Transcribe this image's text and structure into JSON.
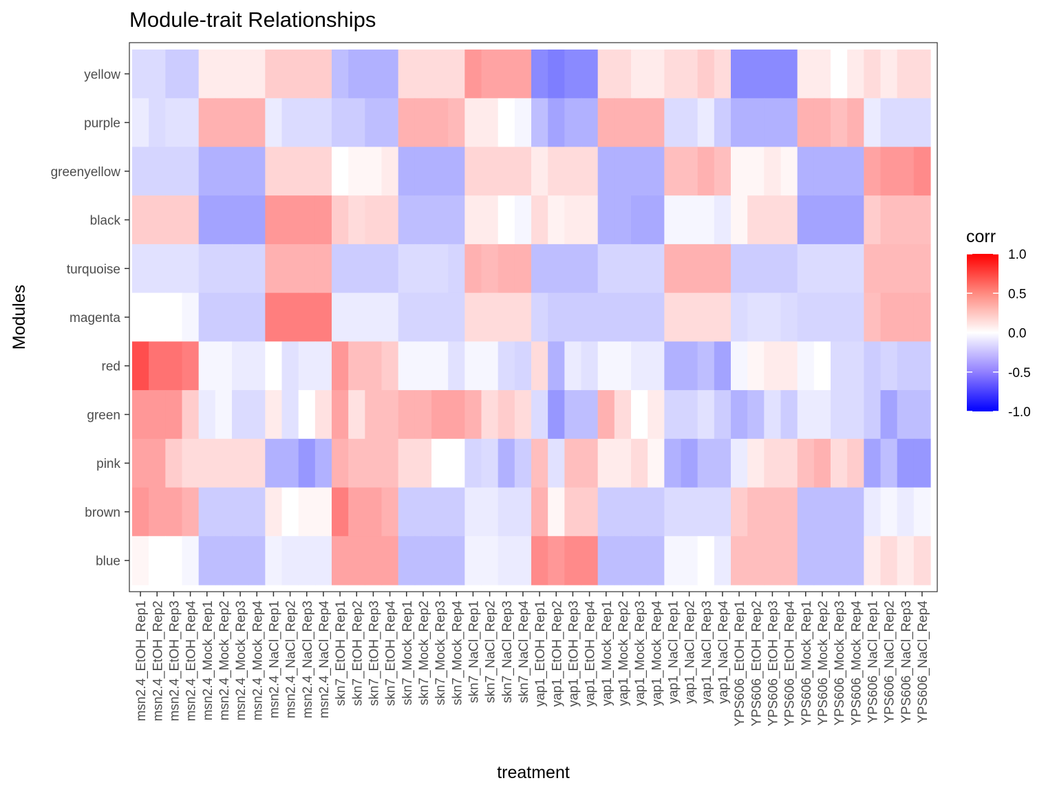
{
  "chart_data": {
    "type": "heatmap",
    "title": "Module-trait Relationships",
    "xlabel": "treatment",
    "ylabel": "Modules",
    "rows": [
      "yellow",
      "purple",
      "greenyellow",
      "black",
      "turquoise",
      "magenta",
      "red",
      "green",
      "pink",
      "brown",
      "blue"
    ],
    "columns": [
      "msn2.4_EtOH_Rep1",
      "msn2.4_EtOH_Rep2",
      "msn2.4_EtOH_Rep3",
      "msn2.4_EtOH_Rep4",
      "msn2.4_Mock_Rep1",
      "msn2.4_Mock_Rep2",
      "msn2.4_Mock_Rep3",
      "msn2.4_Mock_Rep4",
      "msn2.4_NaCl_Rep1",
      "msn2.4_NaCl_Rep2",
      "msn2.4_NaCl_Rep3",
      "msn2.4_NaCl_Rep4",
      "skn7_EtOH_Rep1",
      "skn7_EtOH_Rep2",
      "skn7_EtOH_Rep3",
      "skn7_EtOH_Rep4",
      "skn7_Mock_Rep1",
      "skn7_Mock_Rep2",
      "skn7_Mock_Rep3",
      "skn7_Mock_Rep4",
      "skn7_NaCl_Rep1",
      "skn7_NaCl_Rep2",
      "skn7_NaCl_Rep3",
      "skn7_NaCl_Rep4",
      "yap1_EtOH_Rep1",
      "yap1_EtOH_Rep2",
      "yap1_EtOH_Rep3",
      "yap1_EtOH_Rep4",
      "yap1_Mock_Rep1",
      "yap1_Mock_Rep2",
      "yap1_Mock_Rep3",
      "yap1_Mock_Rep4",
      "yap1_NaCl_Rep1",
      "yap1_NaCl_Rep2",
      "yap1_NaCl_Rep3",
      "yap1_NaCl_Rep4",
      "YPS606_EtOH_Rep1",
      "YPS606_EtOH_Rep2",
      "YPS606_EtOH_Rep3",
      "YPS606_EtOH_Rep4",
      "YPS606_Mock_Rep1",
      "YPS606_Mock_Rep2",
      "YPS606_Mock_Rep3",
      "YPS606_Mock_Rep4",
      "YPS606_NaCl_Rep1",
      "YPS606_NaCl_Rep2",
      "YPS606_NaCl_Rep3",
      "YPS606_NaCl_Rep4"
    ],
    "values": [
      [
        -0.1,
        -0.1,
        -0.15,
        -0.15,
        0.05,
        0.05,
        0.05,
        0.05,
        0.15,
        0.15,
        0.15,
        0.15,
        -0.2,
        -0.25,
        -0.25,
        -0.25,
        0.1,
        0.1,
        0.1,
        0.1,
        0.35,
        0.3,
        0.3,
        0.3,
        -0.4,
        -0.45,
        -0.4,
        -0.4,
        0.1,
        0.1,
        0.05,
        0.05,
        0.1,
        0.1,
        0.15,
        0.1,
        -0.4,
        -0.4,
        -0.4,
        -0.4,
        0.05,
        0.05,
        0.0,
        0.05,
        0.1,
        0.05,
        0.1,
        0.1
      ],
      [
        -0.05,
        -0.1,
        -0.08,
        -0.08,
        0.25,
        0.25,
        0.25,
        0.25,
        -0.05,
        -0.1,
        -0.1,
        -0.1,
        -0.15,
        -0.15,
        -0.2,
        -0.2,
        0.25,
        0.25,
        0.25,
        0.22,
        0.05,
        0.05,
        0.0,
        -0.02,
        -0.2,
        -0.3,
        -0.25,
        -0.25,
        0.25,
        0.25,
        0.25,
        0.25,
        -0.1,
        -0.1,
        -0.05,
        -0.15,
        -0.25,
        -0.25,
        -0.25,
        -0.25,
        0.25,
        0.25,
        0.2,
        0.25,
        -0.05,
        -0.1,
        -0.1,
        -0.1
      ],
      [
        -0.12,
        -0.12,
        -0.12,
        -0.12,
        -0.25,
        -0.25,
        -0.25,
        -0.25,
        0.12,
        0.12,
        0.12,
        0.12,
        0.0,
        0.02,
        0.02,
        0.05,
        -0.25,
        -0.25,
        -0.25,
        -0.25,
        0.12,
        0.12,
        0.12,
        0.12,
        0.05,
        0.1,
        0.1,
        0.1,
        -0.25,
        -0.25,
        -0.25,
        -0.25,
        0.2,
        0.2,
        0.25,
        0.2,
        0.02,
        0.02,
        0.05,
        0.02,
        -0.25,
        -0.25,
        -0.25,
        -0.25,
        0.3,
        0.35,
        0.35,
        0.4
      ],
      [
        0.15,
        0.15,
        0.15,
        0.15,
        -0.3,
        -0.3,
        -0.3,
        -0.3,
        0.35,
        0.35,
        0.35,
        0.35,
        0.15,
        0.1,
        0.12,
        0.12,
        -0.2,
        -0.2,
        -0.2,
        -0.2,
        0.05,
        0.05,
        0.0,
        -0.02,
        0.1,
        0.03,
        0.05,
        0.05,
        -0.25,
        -0.25,
        -0.28,
        -0.28,
        -0.02,
        -0.02,
        -0.02,
        -0.05,
        0.02,
        0.1,
        0.1,
        0.1,
        -0.3,
        -0.3,
        -0.3,
        -0.3,
        0.15,
        0.2,
        0.2,
        0.2
      ],
      [
        -0.08,
        -0.08,
        -0.08,
        -0.08,
        -0.12,
        -0.12,
        -0.12,
        -0.12,
        0.25,
        0.25,
        0.25,
        0.25,
        -0.15,
        -0.15,
        -0.15,
        -0.15,
        -0.1,
        -0.1,
        -0.1,
        -0.12,
        0.25,
        0.22,
        0.25,
        0.25,
        -0.2,
        -0.2,
        -0.2,
        -0.2,
        -0.12,
        -0.12,
        -0.12,
        -0.12,
        0.25,
        0.25,
        0.25,
        0.25,
        -0.15,
        -0.15,
        -0.15,
        -0.15,
        -0.1,
        -0.1,
        -0.1,
        -0.1,
        0.22,
        0.22,
        0.22,
        0.22
      ],
      [
        0.0,
        0.0,
        0.0,
        -0.02,
        -0.15,
        -0.15,
        -0.15,
        -0.15,
        0.45,
        0.45,
        0.45,
        0.45,
        -0.05,
        -0.05,
        -0.05,
        -0.05,
        -0.12,
        -0.12,
        -0.12,
        -0.12,
        0.1,
        0.1,
        0.1,
        0.1,
        -0.12,
        -0.15,
        -0.15,
        -0.15,
        -0.15,
        -0.15,
        -0.15,
        -0.15,
        0.1,
        0.1,
        0.1,
        0.1,
        -0.1,
        -0.08,
        -0.08,
        -0.1,
        -0.12,
        -0.12,
        -0.12,
        -0.12,
        0.2,
        0.25,
        0.25,
        0.25
      ],
      [
        0.65,
        0.5,
        0.5,
        0.45,
        -0.02,
        -0.02,
        -0.05,
        -0.05,
        0.0,
        -0.08,
        -0.05,
        -0.05,
        0.35,
        0.2,
        0.2,
        0.15,
        -0.02,
        -0.02,
        -0.02,
        -0.08,
        -0.02,
        -0.02,
        -0.1,
        -0.12,
        0.1,
        -0.25,
        -0.05,
        -0.08,
        -0.02,
        -0.02,
        -0.05,
        -0.05,
        -0.25,
        -0.25,
        -0.2,
        -0.3,
        -0.02,
        0.02,
        0.05,
        0.05,
        -0.02,
        0.0,
        -0.1,
        -0.1,
        -0.15,
        -0.12,
        -0.15,
        -0.15
      ],
      [
        0.35,
        0.35,
        0.35,
        0.15,
        -0.05,
        -0.02,
        -0.1,
        -0.1,
        0.05,
        -0.08,
        0.0,
        0.08,
        0.3,
        0.08,
        0.2,
        0.2,
        0.25,
        0.25,
        0.3,
        0.3,
        0.25,
        0.1,
        0.15,
        0.1,
        -0.1,
        -0.35,
        -0.2,
        -0.2,
        0.25,
        0.1,
        0.0,
        0.05,
        -0.12,
        -0.12,
        -0.08,
        -0.15,
        -0.25,
        -0.2,
        -0.08,
        -0.15,
        -0.05,
        -0.05,
        -0.1,
        -0.1,
        -0.15,
        -0.3,
        -0.2,
        -0.2
      ],
      [
        0.3,
        0.3,
        0.15,
        0.1,
        0.1,
        0.1,
        0.1,
        0.1,
        -0.25,
        -0.25,
        -0.35,
        -0.25,
        0.25,
        0.2,
        0.2,
        0.2,
        0.1,
        0.1,
        0.0,
        0.0,
        -0.12,
        -0.1,
        -0.25,
        -0.15,
        0.2,
        -0.08,
        0.2,
        0.2,
        0.05,
        0.05,
        0.1,
        0.02,
        -0.25,
        -0.3,
        -0.2,
        -0.2,
        -0.05,
        0.05,
        0.1,
        0.1,
        0.2,
        0.25,
        0.1,
        0.15,
        -0.3,
        -0.2,
        -0.35,
        -0.35
      ],
      [
        0.35,
        0.3,
        0.3,
        0.25,
        -0.15,
        -0.15,
        -0.15,
        -0.15,
        0.05,
        0.0,
        0.02,
        0.02,
        0.45,
        0.3,
        0.3,
        0.25,
        -0.15,
        -0.15,
        -0.15,
        -0.15,
        -0.05,
        -0.05,
        -0.08,
        -0.08,
        0.25,
        0.02,
        0.15,
        0.15,
        -0.15,
        -0.15,
        -0.15,
        -0.15,
        -0.1,
        -0.1,
        -0.1,
        -0.1,
        0.15,
        0.2,
        0.2,
        0.2,
        -0.2,
        -0.2,
        -0.2,
        -0.2,
        -0.05,
        -0.02,
        -0.05,
        -0.02
      ],
      [
        0.02,
        0.0,
        0.0,
        -0.02,
        -0.2,
        -0.2,
        -0.2,
        -0.2,
        -0.03,
        -0.05,
        -0.05,
        -0.05,
        0.3,
        0.3,
        0.3,
        0.3,
        -0.2,
        -0.2,
        -0.2,
        -0.2,
        -0.03,
        -0.03,
        -0.05,
        -0.05,
        0.4,
        0.35,
        0.4,
        0.4,
        -0.2,
        -0.2,
        -0.2,
        -0.2,
        -0.02,
        -0.02,
        0.0,
        -0.05,
        0.2,
        0.2,
        0.2,
        0.2,
        -0.2,
        -0.2,
        -0.2,
        -0.2,
        0.05,
        0.1,
        0.05,
        0.1
      ]
    ],
    "colorscale": {
      "low": "#0000ff",
      "mid": "#ffffff",
      "high": "#ff0000",
      "min": -1.0,
      "max": 1.0
    },
    "legend": {
      "title": "corr",
      "position": "right",
      "ticks": [
        "1.0",
        "0.5",
        "0.0",
        "-0.5",
        "-1.0"
      ]
    },
    "grid": false
  }
}
